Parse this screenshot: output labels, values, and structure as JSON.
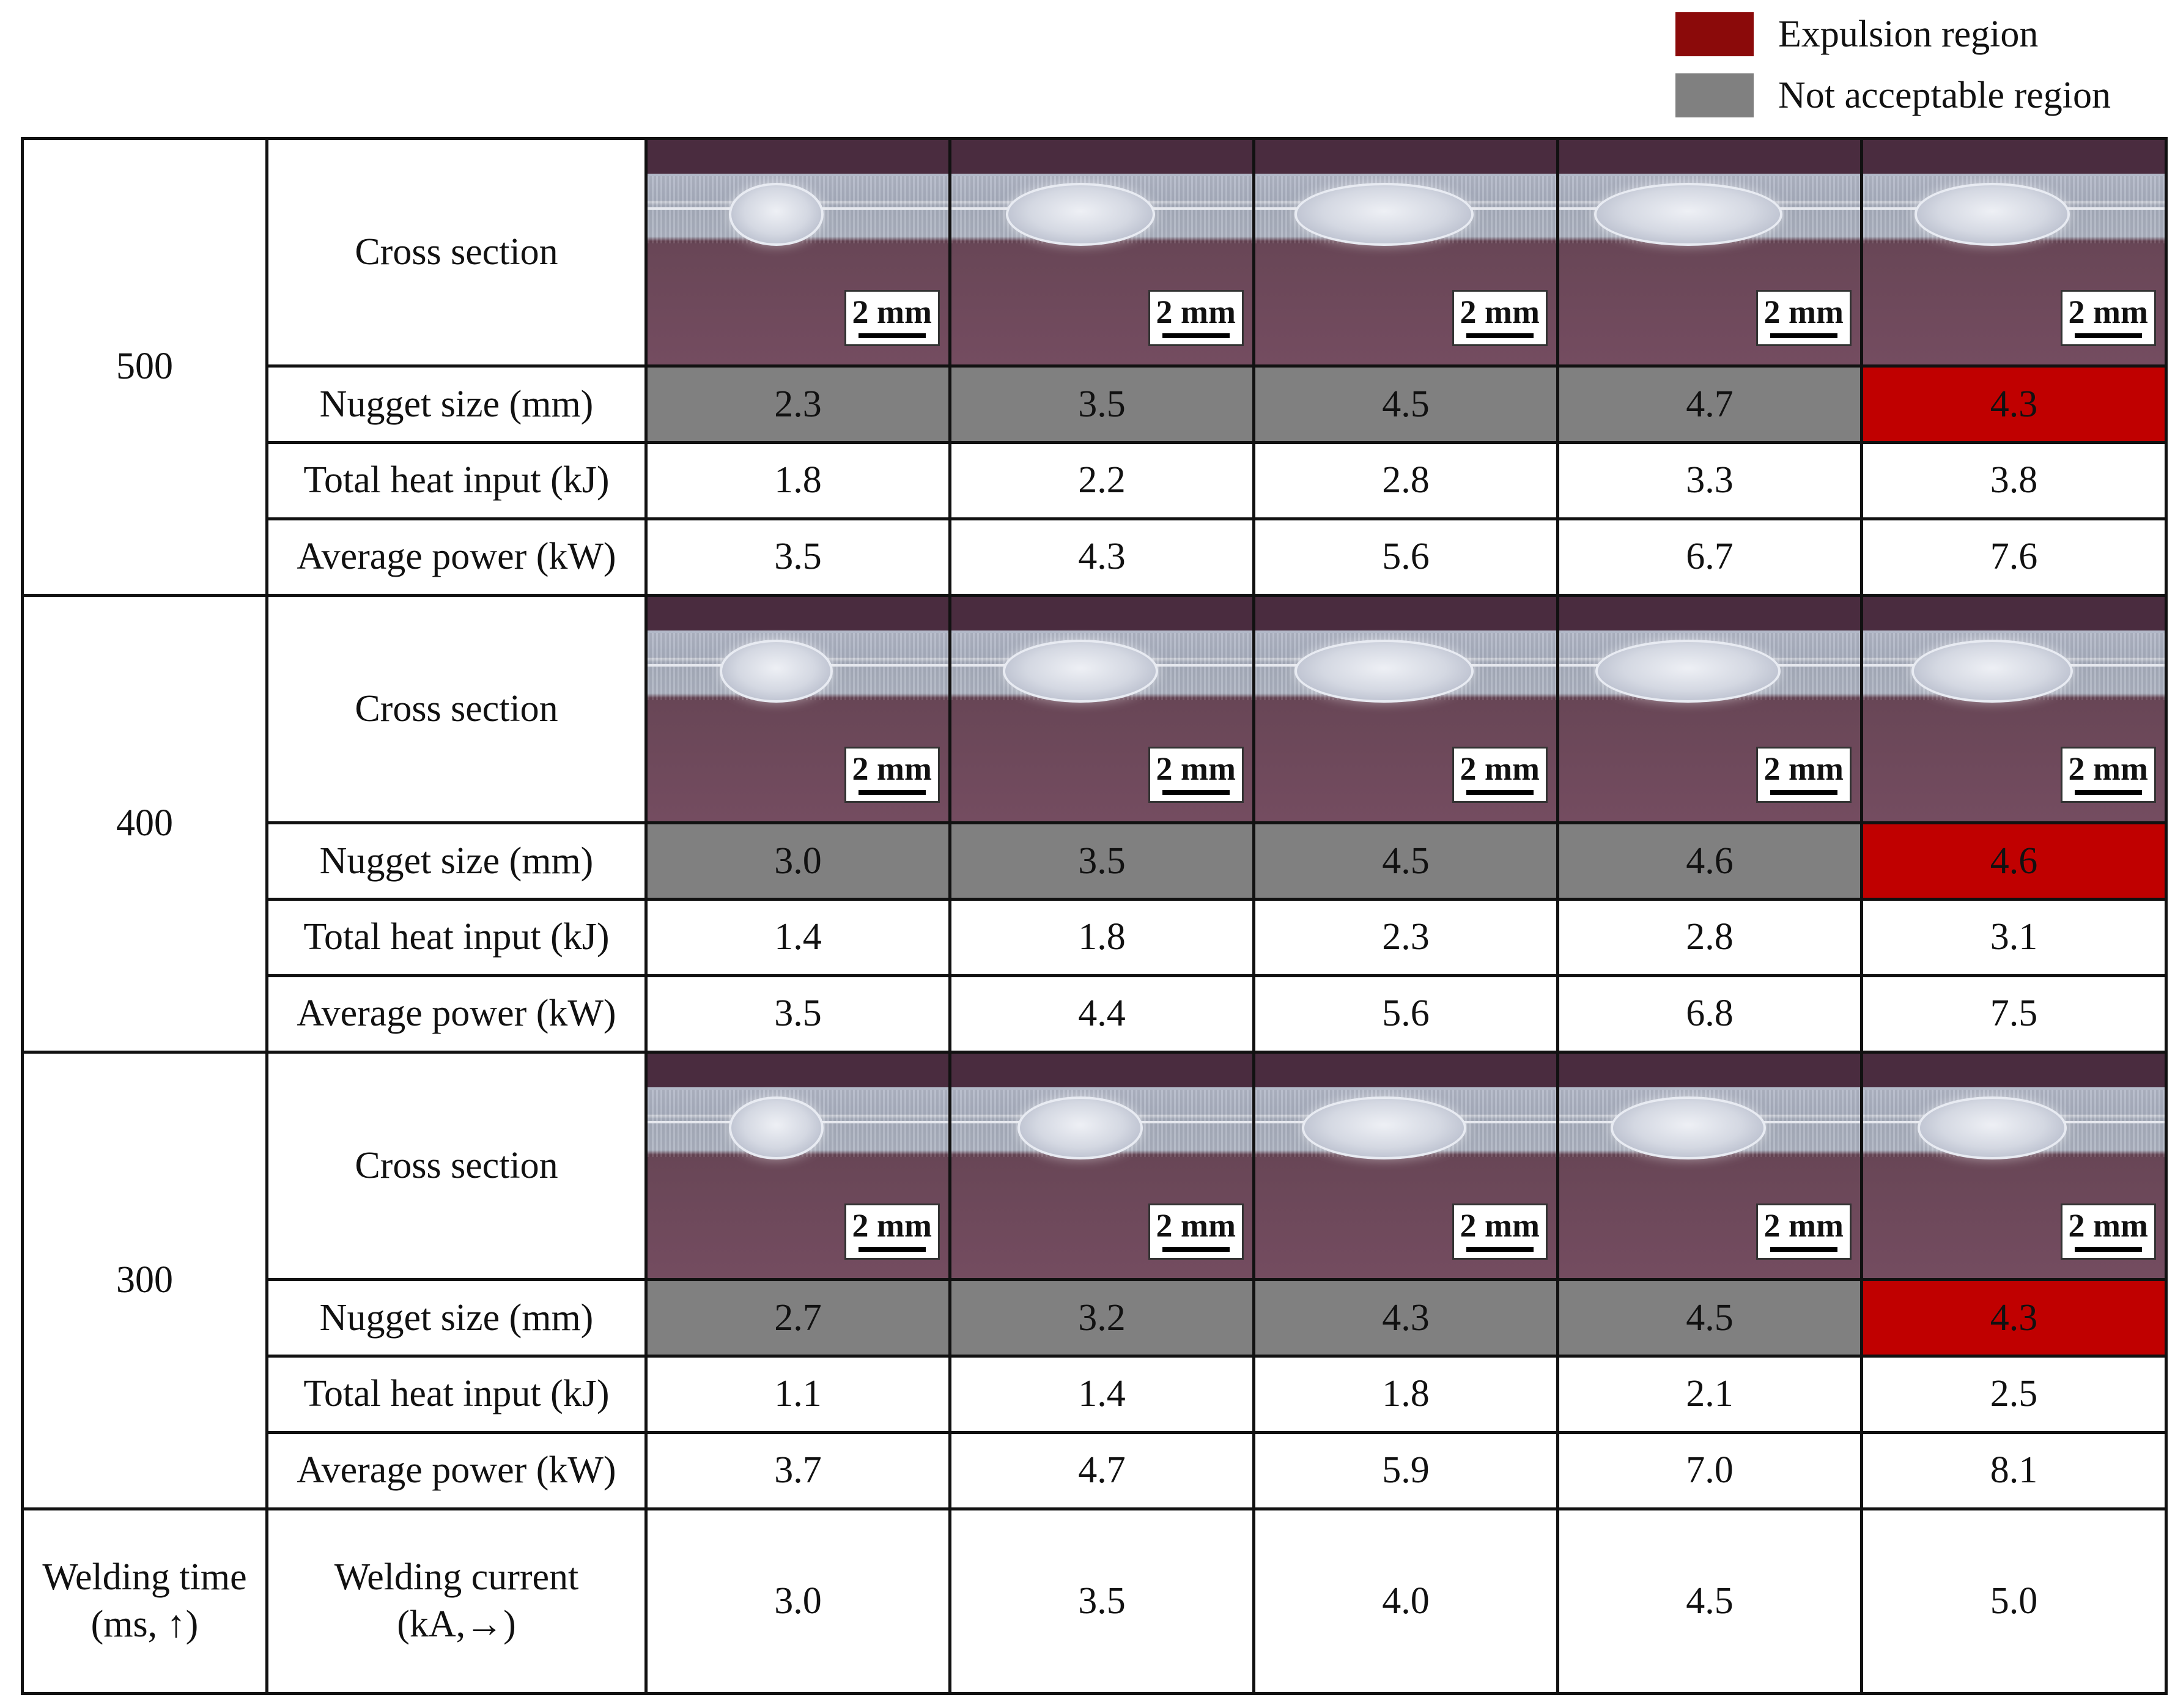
{
  "legend": [
    {
      "label": "Expulsion region",
      "color": "#8b0a0a"
    },
    {
      "label": "Not acceptable region",
      "color": "#808080"
    }
  ],
  "row_labels": {
    "cross_section": "Cross section",
    "nugget": "Nugget size (mm)",
    "heat": "Total heat input (kJ)",
    "power": "Average power (kW)"
  },
  "scale_label": "2 mm",
  "groups": [
    {
      "time": "500",
      "nugget": [
        "2.3",
        "3.5",
        "4.5",
        "4.7",
        "4.3"
      ],
      "heat": [
        "1.8",
        "2.2",
        "2.8",
        "3.3",
        "3.8"
      ],
      "power": [
        "3.5",
        "4.3",
        "5.6",
        "6.7",
        "7.6"
      ]
    },
    {
      "time": "400",
      "nugget": [
        "3.0",
        "3.5",
        "4.5",
        "4.6",
        "4.6"
      ],
      "heat": [
        "1.4",
        "1.8",
        "2.3",
        "2.8",
        "3.1"
      ],
      "power": [
        "3.5",
        "4.4",
        "5.6",
        "6.8",
        "7.5"
      ]
    },
    {
      "time": "300",
      "nugget": [
        "2.7",
        "3.2",
        "4.3",
        "4.5",
        "4.3"
      ],
      "heat": [
        "1.1",
        "1.4",
        "1.8",
        "2.1",
        "2.5"
      ],
      "power": [
        "3.7",
        "4.7",
        "5.9",
        "7.0",
        "8.1"
      ]
    }
  ],
  "footer": {
    "time_label_line1": "Welding time",
    "time_label_line2": "(ms, ↑)",
    "current_label_line1": "Welding current",
    "current_label_line2": "(kA,→)",
    "currents": [
      "3.0",
      "3.5",
      "4.0",
      "4.5",
      "5.0"
    ]
  }
}
